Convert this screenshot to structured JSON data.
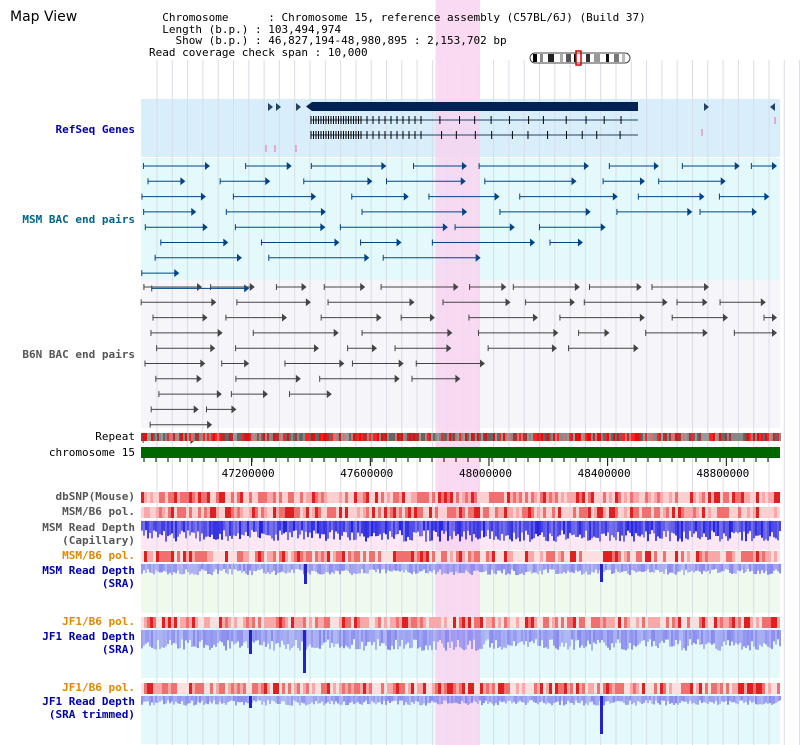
{
  "page": {
    "title": "Map View"
  },
  "info": {
    "chromosome_key": "Chromosome",
    "chromosome_value": "Chromosome 15, reference assembly (C57BL/6J) (Build 37)",
    "length_key": "Length (b.p.)",
    "length_value": "103,494,974",
    "show_key": "Show (b.p.)",
    "show_value": "46,827,194-48,980,895 : 2,153,702 bp",
    "coverage_key": "Read coverage check span",
    "coverage_value": "10,000"
  },
  "view": {
    "start": 46827194,
    "end": 48980895,
    "highlight_start": 47820000,
    "highlight_end": 47970000
  },
  "axis": {
    "ticks": [
      {
        "position": 47200000,
        "label": "47200000"
      },
      {
        "position": 47600000,
        "label": "47600000"
      },
      {
        "position": 48000000,
        "label": "48000000"
      },
      {
        "position": 48400000,
        "label": "48400000"
      },
      {
        "position": 48800000,
        "label": "48800000"
      }
    ]
  },
  "tracks": {
    "refseq": {
      "label": "RefSeq Genes"
    },
    "msm_bac": {
      "label": "MSM BAC end pairs"
    },
    "b6n_bac": {
      "label": "B6N BAC end pairs"
    },
    "repeat": {
      "label": "Repeat"
    },
    "chromosome": {
      "label": "chromosome 15"
    },
    "dbsnp": {
      "label": "dbSNP(Mouse)"
    },
    "msm_b6_pol_1": {
      "label": "MSM/B6 pol."
    },
    "msm_depth_cap": {
      "label_1": "MSM Read Depth",
      "label_2": "(Capillary)"
    },
    "msm_b6_pol_2": {
      "label": "MSM/B6 pol."
    },
    "msm_depth_sra": {
      "label_1": "MSM Read Depth",
      "label_2": "(SRA)"
    },
    "jf1_b6_pol_1": {
      "label": "JF1/B6 pol."
    },
    "jf1_depth_sra": {
      "label_1": "JF1 Read Depth",
      "label_2": "(SRA)"
    },
    "jf1_b6_pol_2": {
      "label": "JF1/B6 pol."
    },
    "jf1_depth_trim": {
      "label_1": "JF1 Read Depth",
      "label_2": "(SRA trimmed)"
    }
  },
  "colors": {
    "highlight": "#f8d4f0",
    "refseq_bg": "#d8eefa",
    "msm_bac_bg": "#e4fafa",
    "b6n_bac_bg": "#f6f6fa",
    "refseq_label": "#0000aa",
    "msm_label": "#006688",
    "b6n_label": "#555555",
    "pol_label": "#e08800",
    "depth_label": "#0000aa",
    "chromosome_bar": "#006600",
    "gene_fill": "#002255",
    "msm_pair": "#004488",
    "b6n_pair": "#444444",
    "depth_blue": "#2222dd",
    "depth_light": "#8888ee"
  }
}
